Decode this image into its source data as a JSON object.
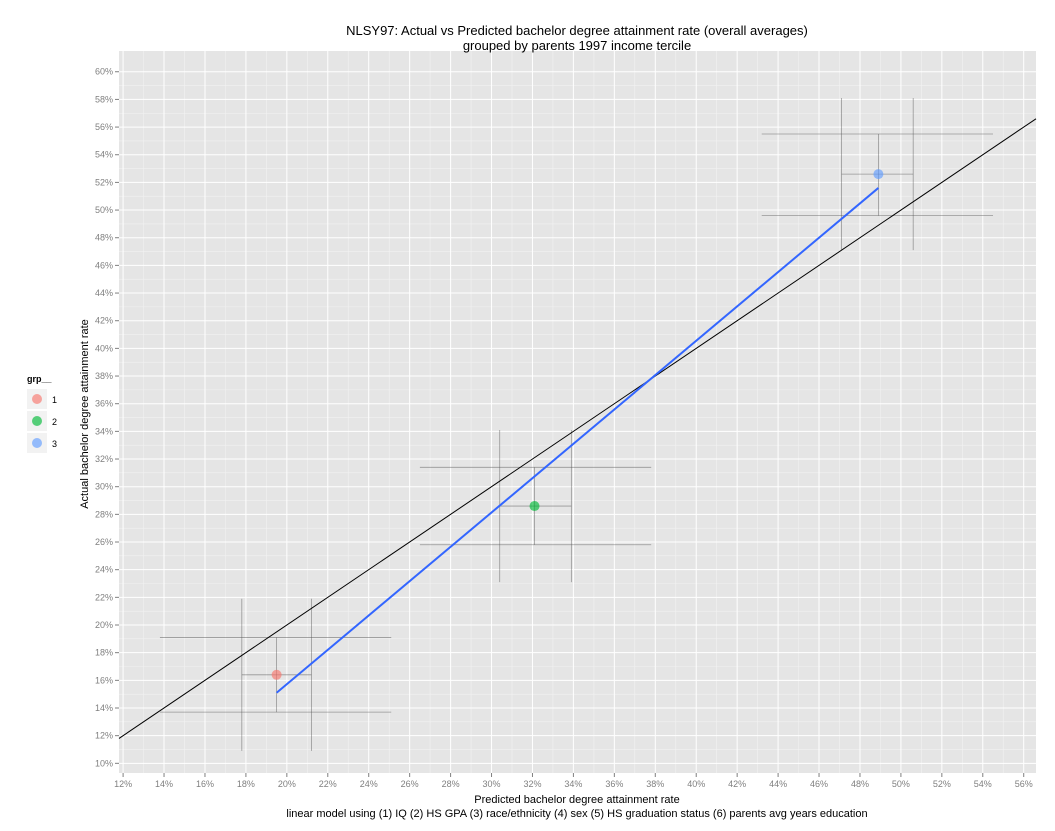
{
  "chart_data": {
    "type": "scatter",
    "title_line1": "NLSY97: Actual vs Predicted bachelor degree attainment rate (overall averages)",
    "title_line2": "grouped by parents 1997 income tercile",
    "xlabel": "Predicted bachelor degree attainment rate",
    "xlabel_line2": "linear model using (1) IQ (2) HS GPA (3) race/ethnicity (4) sex (5) HS graduation status (6) parents avg years education",
    "ylabel": "Actual bachelor degree attainment rate",
    "xlim": [
      0.118,
      0.566
    ],
    "ylim": [
      0.093,
      0.615
    ],
    "x_ticks": [
      0.12,
      0.14,
      0.16,
      0.18,
      0.2,
      0.22,
      0.24,
      0.26,
      0.28,
      0.3,
      0.32,
      0.34,
      0.36,
      0.38,
      0.4,
      0.42,
      0.44,
      0.46,
      0.48,
      0.5,
      0.52,
      0.54,
      0.56
    ],
    "x_tick_labels": [
      "12%",
      "14%",
      "16%",
      "18%",
      "20%",
      "22%",
      "24%",
      "26%",
      "28%",
      "30%",
      "32%",
      "34%",
      "36%",
      "38%",
      "40%",
      "42%",
      "44%",
      "46%",
      "48%",
      "50%",
      "52%",
      "54%",
      "56%"
    ],
    "y_ticks": [
      0.1,
      0.12,
      0.14,
      0.16,
      0.18,
      0.2,
      0.22,
      0.24,
      0.26,
      0.28,
      0.3,
      0.32,
      0.34,
      0.36,
      0.38,
      0.4,
      0.42,
      0.44,
      0.46,
      0.48,
      0.5,
      0.52,
      0.54,
      0.56,
      0.58,
      0.6
    ],
    "y_tick_labels": [
      "10%",
      "12%",
      "14%",
      "16%",
      "18%",
      "20%",
      "22%",
      "24%",
      "26%",
      "28%",
      "30%",
      "32%",
      "34%",
      "36%",
      "38%",
      "40%",
      "42%",
      "44%",
      "46%",
      "48%",
      "50%",
      "52%",
      "54%",
      "56%",
      "58%",
      "60%"
    ],
    "grid": true,
    "legend": {
      "title": "grp__",
      "position": "left",
      "entries": [
        "1",
        "2",
        "3"
      ]
    },
    "series": [
      {
        "name": "1",
        "color": "#F8766D",
        "x": 0.195,
        "y": 0.164,
        "x_inner": [
          0.178,
          0.212
        ],
        "y_inner": [
          0.137,
          0.191
        ],
        "x_outer": [
          0.138,
          0.251
        ],
        "y_outer": [
          0.109,
          0.219
        ]
      },
      {
        "name": "2",
        "color": "#00BA38",
        "x": 0.321,
        "y": 0.286,
        "x_inner": [
          0.304,
          0.339
        ],
        "y_inner": [
          0.258,
          0.314
        ],
        "x_outer": [
          0.265,
          0.378
        ],
        "y_outer": [
          0.231,
          0.341
        ]
      },
      {
        "name": "3",
        "color": "#619CFF",
        "x": 0.489,
        "y": 0.526,
        "x_inner": [
          0.471,
          0.506
        ],
        "y_inner": [
          0.496,
          0.555
        ],
        "x_outer": [
          0.432,
          0.545
        ],
        "y_outer": [
          0.471,
          0.581
        ]
      }
    ],
    "reference_line": {
      "slope": 1,
      "intercept": 0,
      "color": "#000000"
    },
    "fit_line": {
      "x": [
        0.195,
        0.489
      ],
      "y": [
        0.151,
        0.516
      ],
      "color": "#3366FF"
    }
  }
}
